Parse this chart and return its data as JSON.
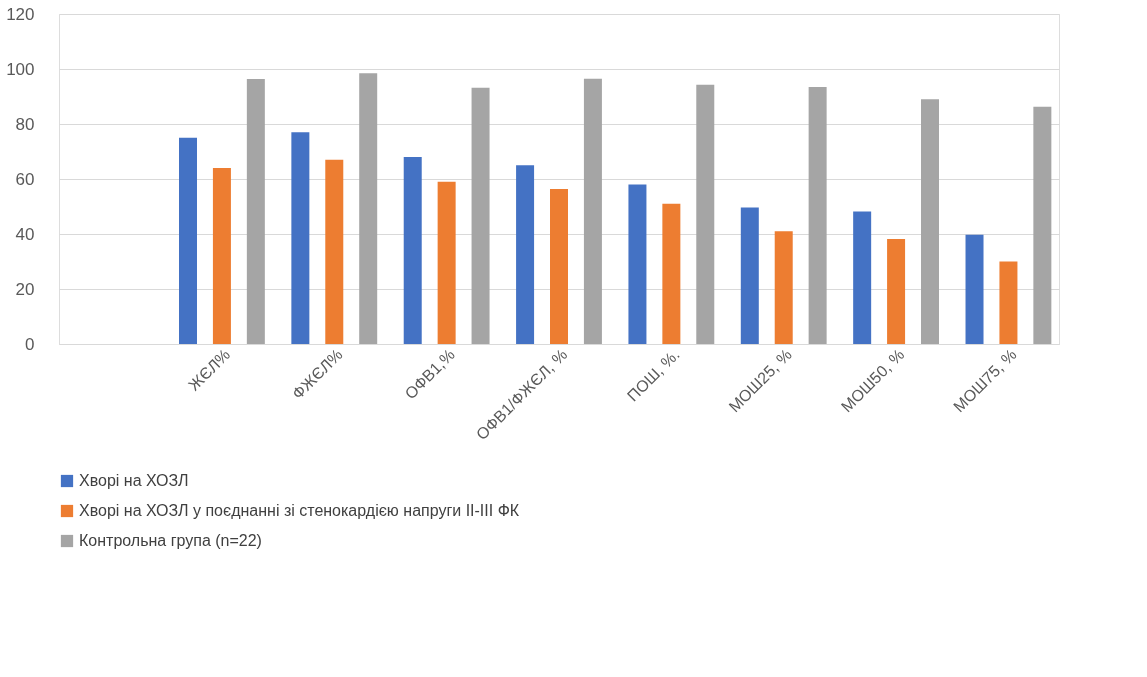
{
  "chart_data": {
    "type": "bar",
    "categories": [
      null,
      "ЖЄЛ%",
      "ФЖЄЛ%",
      "ОФВ1,%",
      "ОФВ1/ФЖЄЛ, %",
      "ПОШ, %.",
      "МОШ25, %",
      "МОШ50, %",
      "МОШ75, %"
    ],
    "series": [
      {
        "name": "Хворі  на ХОЗЛ",
        "color": "#4472c4",
        "values": [
          null,
          75,
          77,
          68,
          65,
          58,
          49.6,
          48.2,
          39.7
        ]
      },
      {
        "name": "Хворі на ХОЗЛ у поєднанні зі стенокардією напруги ІІ-ІІІ ФК",
        "color": "#ed7d31",
        "values": [
          null,
          64,
          67,
          59,
          56.4,
          51,
          41,
          38.2,
          30
        ]
      },
      {
        "name": "Контрольна група (n=22)",
        "color": "#a5a5a5",
        "values": [
          null,
          96.4,
          98.5,
          93.2,
          96.5,
          94.3,
          93.5,
          89,
          86.3
        ]
      }
    ],
    "ylim": [
      0,
      120
    ],
    "yticks": [
      0,
      20,
      40,
      60,
      80,
      100,
      120
    ],
    "grid": "y",
    "legend": "bottom"
  }
}
